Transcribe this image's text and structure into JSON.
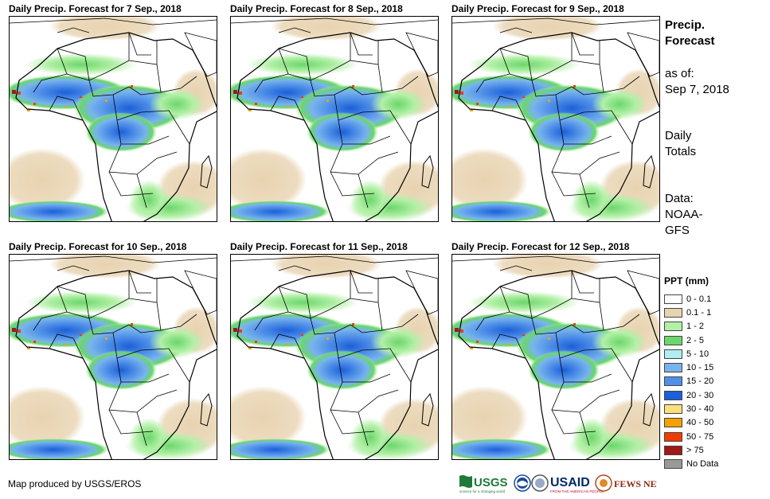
{
  "panels": [
    {
      "title": "Daily Precip. Forecast for 7 Sep., 2018"
    },
    {
      "title": "Daily Precip. Forecast for 8 Sep., 2018"
    },
    {
      "title": "Daily Precip. Forecast for 9 Sep., 2018"
    },
    {
      "title": "Daily Precip. Forecast for 10 Sep., 2018"
    },
    {
      "title": "Daily Precip. Forecast for 11 Sep., 2018"
    },
    {
      "title": "Daily Precip. Forecast for 12 Sep., 2018"
    }
  ],
  "sidebar": {
    "heading_line1": "Precip.",
    "heading_line2": "Forecast",
    "asof_line1": "as of:",
    "asof_line2": "Sep 7, 2018",
    "daily_line1": "Daily",
    "daily_line2": "Totals",
    "data_line1": "Data:",
    "data_line2": "NOAA-",
    "data_line3": "GFS"
  },
  "legend": {
    "title": "PPT (mm)",
    "items": [
      {
        "label": "0 - 0.1",
        "color": "#ffffff"
      },
      {
        "label": "0.1 - 1",
        "color": "#e8d3b0"
      },
      {
        "label": "1 - 2",
        "color": "#b2f0a6"
      },
      {
        "label": "2 - 5",
        "color": "#6bd66b"
      },
      {
        "label": "5 - 10",
        "color": "#b0eef2"
      },
      {
        "label": "10 - 15",
        "color": "#78b4ec"
      },
      {
        "label": "15 - 20",
        "color": "#4f8fe8"
      },
      {
        "label": "20 - 30",
        "color": "#1c5fd8"
      },
      {
        "label": "30 - 40",
        "color": "#f9e07a"
      },
      {
        "label": "40 - 50",
        "color": "#f5a200"
      },
      {
        "label": "50 - 75",
        "color": "#f03c00"
      },
      {
        "label": "> 75",
        "color": "#a01818"
      },
      {
        "label": "No Data",
        "color": "#999999"
      }
    ]
  },
  "credit": "Map produced by USGS/EROS",
  "logos": {
    "usgs": "USGS",
    "usgs_tagline": "science for a changing world",
    "usaid": "USAID",
    "usaid_tagline": "FROM THE AMERICAN PEOPLE",
    "fewsnet": "FEWS NET"
  }
}
